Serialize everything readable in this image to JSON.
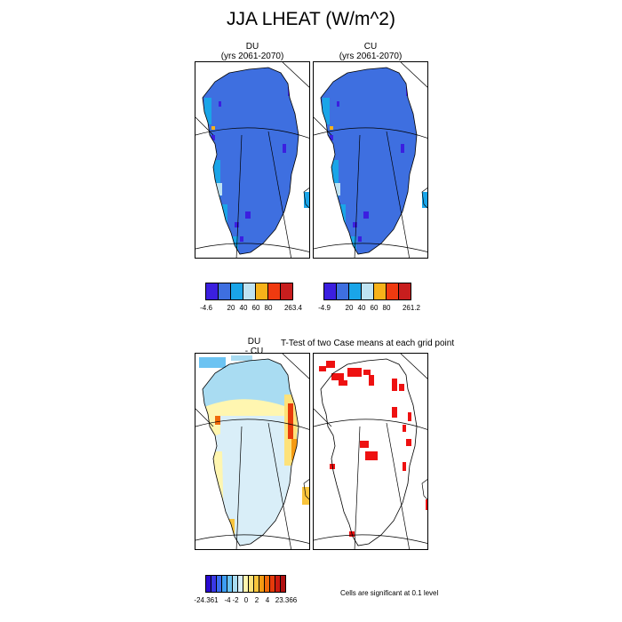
{
  "figure": {
    "title": "JJA LHEAT (W/m^2)",
    "panels": {
      "du_label": "DU",
      "du_years": "(yrs 2061-2070)",
      "cu_label": "CU",
      "cu_years": "(yrs 2061-2070)",
      "diff_label_1": "DU",
      "diff_label_2": "- CU",
      "ttest_title": "T-Test of two Case means at each grid point",
      "significance_note": "Cells are significant at 0.1 level"
    }
  },
  "chart_data": [
    {
      "type": "heatmap",
      "name": "DU",
      "subtitle": "(yrs 2061-2070)",
      "colorbar": {
        "colors": [
          "#3b1fe0",
          "#3e6fe0",
          "#1aa5e8",
          "#bfe3f2",
          "#f7b21a",
          "#f03a10",
          "#c81e1e"
        ],
        "labels": [
          "-4.6",
          "20",
          "40",
          "60",
          "80",
          "263.4"
        ],
        "min": -4.6,
        "max": 263.4
      }
    },
    {
      "type": "heatmap",
      "name": "CU",
      "subtitle": "(yrs 2061-2070)",
      "colorbar": {
        "colors": [
          "#3b1fe0",
          "#3e6fe0",
          "#1aa5e8",
          "#bfe3f2",
          "#f7b21a",
          "#f03a10",
          "#c81e1e"
        ],
        "labels": [
          "-4.9",
          "20",
          "40",
          "60",
          "80",
          "261.2"
        ],
        "min": -4.9,
        "max": 261.2
      }
    },
    {
      "type": "heatmap",
      "name": "DU - CU",
      "colorbar": {
        "colors": [
          "#2a0ad0",
          "#3a38e6",
          "#3a6cf0",
          "#3d9df2",
          "#6cc3f2",
          "#a9dcf2",
          "#d9eef8",
          "#fff6b0",
          "#fde27a",
          "#f9c43c",
          "#f59a12",
          "#f06a0a",
          "#e63a0a",
          "#cc1a10",
          "#b01010"
        ],
        "labels": [
          "-24.361",
          "-4",
          "-2",
          "0",
          "2",
          "4",
          "23.366"
        ],
        "min": -24.361,
        "max": 23.366
      }
    },
    {
      "type": "heatmap",
      "name": "T-Test",
      "significant_color": "#ee1111"
    }
  ]
}
